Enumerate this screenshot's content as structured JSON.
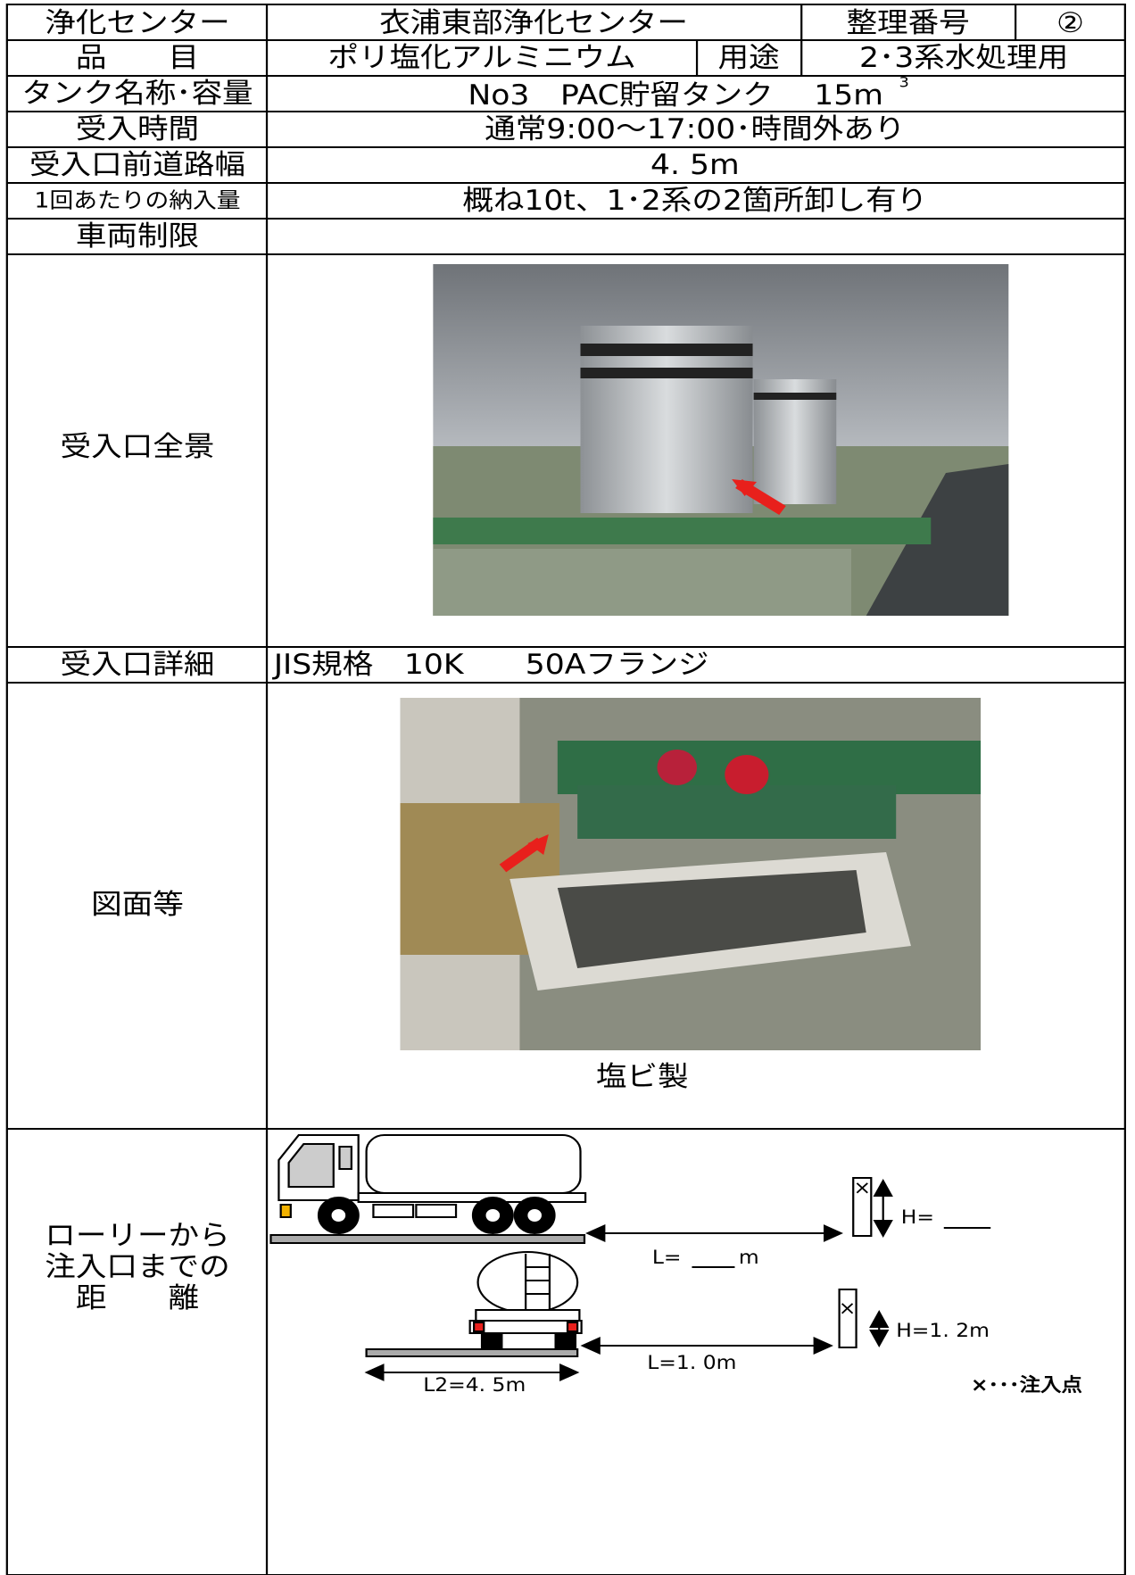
{
  "header": {
    "rows": [
      [
        "浄化センター",
        "衣浦東部浄化センター",
        "整理番号",
        "②"
      ],
      [
        "品　　目",
        "ポリ塩化アルミニウム",
        "用途",
        "2･3系水処理用"
      ]
    ]
  },
  "table": {
    "rows": [
      {
        "label": "タンク名称･容量",
        "value": "No3　PAC貯留タンク　 15m",
        "sup": "3"
      },
      {
        "label": "受入時間",
        "value": "通常9:00～17:00･時間外あり"
      },
      {
        "label": "受入口前道路幅",
        "value": "4. 5m"
      },
      {
        "label": "1回あたりの納入量",
        "value": "概ね10t、1･2系の2箇所卸し有り"
      },
      {
        "label": "車両制限"
      },
      {
        "label": "受入口全景"
      },
      {
        "label": "受入口詳細",
        "value": "JIS規格　10K　　50Aフランジ"
      },
      {
        "label": "図面等",
        "caption": "塩ビ製"
      },
      {
        "label_lines": [
          "ローリーから",
          "注入口までの",
          "距　　離"
        ]
      }
    ]
  },
  "diagram": {
    "side_h": "H=",
    "side_l": "L=",
    "side_l_unit": "m",
    "rear_h": "H=1. 2m",
    "rear_l": "L=1. 0m",
    "rear_l2": "L2=4. 5m",
    "legend": "×･･･注入点",
    "mark": "×"
  }
}
